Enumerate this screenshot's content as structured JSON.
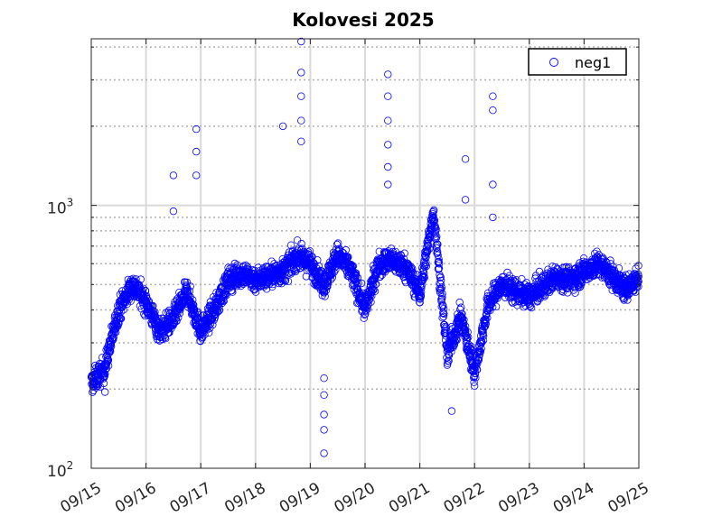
{
  "chart_data": {
    "type": "scatter",
    "title": "Kolovesi 2025",
    "xlabel": "",
    "ylabel": "",
    "y_scale": "log",
    "ylim": [
      100,
      4300
    ],
    "x_range": [
      "2025-09-15T00:00",
      "2025-09-25T00:00"
    ],
    "x_tick_labels": [
      "09/15",
      "09/16",
      "09/17",
      "09/18",
      "09/19",
      "09/20",
      "09/21",
      "09/22",
      "09/23",
      "09/24",
      "09/25"
    ],
    "y_tick_labels": [
      {
        "base": "10",
        "exp": "2",
        "value": 100
      },
      {
        "base": "10",
        "exp": "3",
        "value": 1000
      }
    ],
    "grid": true,
    "legend_position": "top-right",
    "series": [
      {
        "name": "neg1",
        "marker": "open-circle",
        "color": "#0000ff",
        "trend": [
          [
            "2025-09-15T00:00",
            210
          ],
          [
            "2025-09-15T06:00",
            240
          ],
          [
            "2025-09-15T12:00",
            400
          ],
          [
            "2025-09-15T18:00",
            500
          ],
          [
            "2025-09-16T00:00",
            430
          ],
          [
            "2025-09-16T06:00",
            330
          ],
          [
            "2025-09-16T12:00",
            370
          ],
          [
            "2025-09-16T18:00",
            470
          ],
          [
            "2025-09-17T00:00",
            330
          ],
          [
            "2025-09-17T06:00",
            400
          ],
          [
            "2025-09-17T12:00",
            520
          ],
          [
            "2025-09-17T18:00",
            550
          ],
          [
            "2025-09-18T00:00",
            520
          ],
          [
            "2025-09-18T06:00",
            540
          ],
          [
            "2025-09-18T12:00",
            560
          ],
          [
            "2025-09-18T18:00",
            640
          ],
          [
            "2025-09-19T00:00",
            600
          ],
          [
            "2025-09-19T06:00",
            500
          ],
          [
            "2025-09-19T12:00",
            650
          ],
          [
            "2025-09-19T18:00",
            560
          ],
          [
            "2025-09-20T00:00",
            400
          ],
          [
            "2025-09-20T06:00",
            600
          ],
          [
            "2025-09-20T12:00",
            620
          ],
          [
            "2025-09-20T18:00",
            580
          ],
          [
            "2025-09-21T00:00",
            460
          ],
          [
            "2025-09-21T06:00",
            950
          ],
          [
            "2025-09-21T12:00",
            270
          ],
          [
            "2025-09-21T18:00",
            380
          ],
          [
            "2025-09-22T00:00",
            230
          ],
          [
            "2025-09-22T06:00",
            420
          ],
          [
            "2025-09-22T12:00",
            500
          ],
          [
            "2025-09-22T18:00",
            470
          ],
          [
            "2025-09-23T00:00",
            450
          ],
          [
            "2025-09-23T06:00",
            490
          ],
          [
            "2025-09-23T12:00",
            540
          ],
          [
            "2025-09-23T18:00",
            520
          ],
          [
            "2025-09-24T00:00",
            560
          ],
          [
            "2025-09-24T06:00",
            600
          ],
          [
            "2025-09-24T12:00",
            540
          ],
          [
            "2025-09-24T18:00",
            480
          ],
          [
            "2025-09-25T00:00",
            530
          ]
        ],
        "spikes": [
          [
            "2025-09-15T06:00",
            195
          ],
          [
            "2025-09-16T12:00",
            1300
          ],
          [
            "2025-09-16T12:00",
            950
          ],
          [
            "2025-09-16T22:00",
            1950
          ],
          [
            "2025-09-16T22:00",
            1600
          ],
          [
            "2025-09-16T22:00",
            1300
          ],
          [
            "2025-09-18T12:00",
            2000
          ],
          [
            "2025-09-18T20:00",
            4200
          ],
          [
            "2025-09-18T20:00",
            3200
          ],
          [
            "2025-09-18T20:00",
            2600
          ],
          [
            "2025-09-18T20:00",
            2100
          ],
          [
            "2025-09-18T20:00",
            1750
          ],
          [
            "2025-09-19T06:00",
            114
          ],
          [
            "2025-09-19T06:00",
            140
          ],
          [
            "2025-09-19T06:00",
            160
          ],
          [
            "2025-09-19T06:00",
            190
          ],
          [
            "2025-09-19T06:00",
            220
          ],
          [
            "2025-09-20T10:00",
            3150
          ],
          [
            "2025-09-20T10:00",
            2600
          ],
          [
            "2025-09-20T10:00",
            2100
          ],
          [
            "2025-09-20T10:00",
            1700
          ],
          [
            "2025-09-20T10:00",
            1400
          ],
          [
            "2025-09-20T10:00",
            1200
          ],
          [
            "2025-09-21T20:00",
            1500
          ],
          [
            "2025-09-21T20:00",
            1050
          ],
          [
            "2025-09-21T14:00",
            165
          ],
          [
            "2025-09-22T08:00",
            2600
          ],
          [
            "2025-09-22T08:00",
            2300
          ],
          [
            "2025-09-22T08:00",
            1200
          ],
          [
            "2025-09-22T08:00",
            900
          ]
        ]
      }
    ]
  }
}
